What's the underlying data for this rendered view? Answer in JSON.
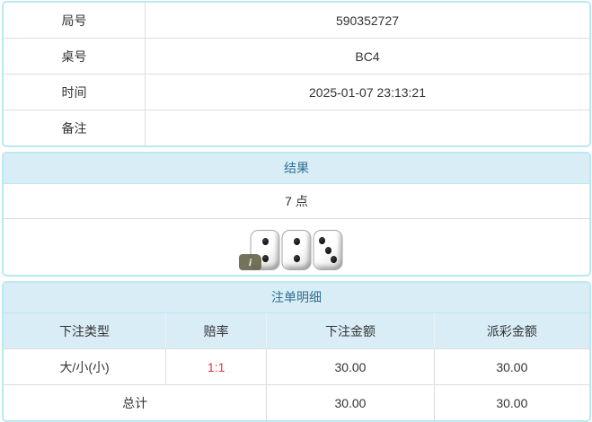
{
  "colors": {
    "panel_border": "#bce8f1",
    "heading_bg": "#d9edf7",
    "heading_text": "#31708f",
    "cell_border": "#dddddd",
    "body_text": "#333333",
    "odds_red": "#ee3045"
  },
  "game_info": {
    "rows": [
      {
        "label": "局号",
        "value": "590352727"
      },
      {
        "label": "桌号",
        "value": "BC4"
      },
      {
        "label": "时间",
        "value": "2025-01-07 23:13:21"
      },
      {
        "label": "备注",
        "value": ""
      }
    ]
  },
  "result": {
    "heading": "结果",
    "points": "7 点",
    "dice": [
      2,
      2,
      3
    ],
    "info_icon_label": "i"
  },
  "bet_details": {
    "heading": "注单明细",
    "columns": [
      "下注类型",
      "赔率",
      "下注金额",
      "派彩金额"
    ],
    "rows": [
      {
        "bet_type": "大/小(小)",
        "odds": "1:1",
        "bet_amount": "30.00",
        "payout_amount": "30.00"
      }
    ],
    "total": {
      "label": "总计",
      "bet_amount": "30.00",
      "payout_amount": "30.00"
    }
  }
}
